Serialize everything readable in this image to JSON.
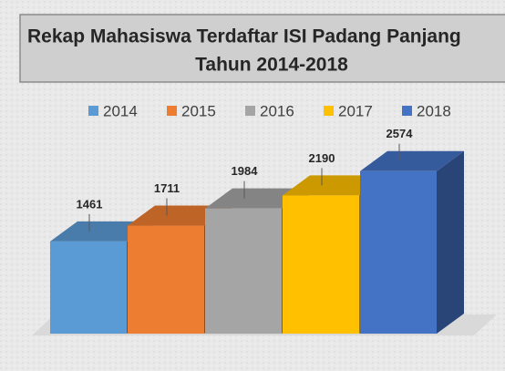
{
  "chart_data": {
    "type": "bar3d",
    "title": "Rekap Mahasiswa Terdaftar ISI Padang Panjang",
    "subtitle": "Tahun 2014-2018",
    "categories": [
      "2014",
      "2015",
      "2016",
      "2017",
      "2018"
    ],
    "values": [
      1461,
      1711,
      1984,
      2190,
      2574
    ],
    "colors": [
      "#5b9bd5",
      "#ed7d31",
      "#a5a5a5",
      "#ffc000",
      "#4472c4"
    ],
    "legend": "top"
  }
}
